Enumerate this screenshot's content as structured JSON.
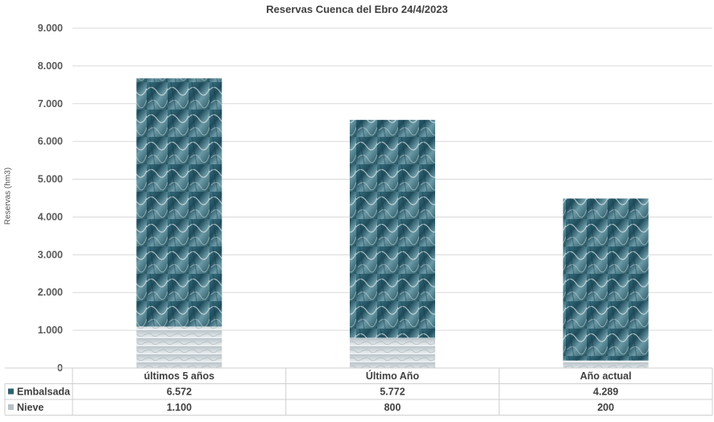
{
  "chart_data": {
    "type": "bar",
    "stacked": true,
    "title": "Reservas Cuenca del Ebro 24/4/2023",
    "xlabel": "",
    "ylabel": "Reservas (hm3)",
    "ylim": [
      0,
      9000
    ],
    "yticks": [
      "0",
      "1.000",
      "2.000",
      "3.000",
      "4.000",
      "5.000",
      "6.000",
      "7.000",
      "8.000",
      "9.000"
    ],
    "grid": true,
    "legend": "data-table-left",
    "categories": [
      "últimos 5 años",
      "Último Año",
      "Año actual"
    ],
    "series": [
      {
        "name": "Nieve",
        "values": [
          1100,
          800,
          200
        ],
        "labels": [
          "1.100",
          "800",
          "200"
        ],
        "color": "#cfd8dc"
      },
      {
        "name": "Embalsada",
        "values": [
          6572,
          5772,
          4289
        ],
        "labels": [
          "6.572",
          "5.772",
          "4.289"
        ],
        "color": "#2e6170"
      }
    ],
    "table_order": [
      "Embalsada",
      "Nieve"
    ]
  }
}
